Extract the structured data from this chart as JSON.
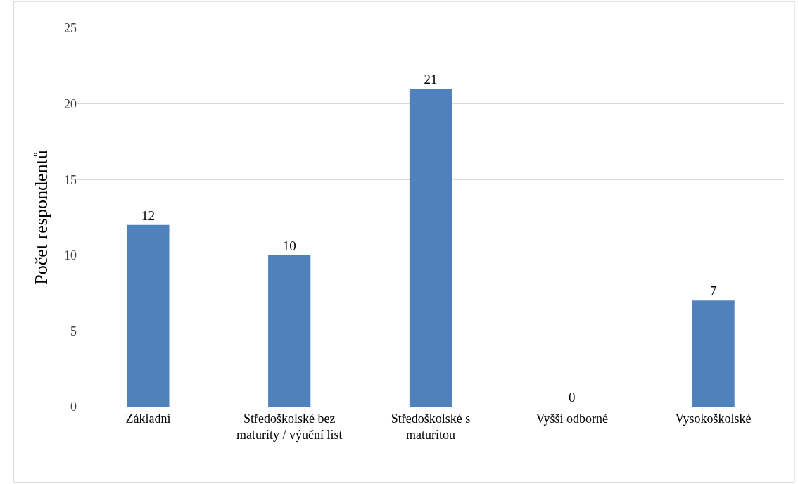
{
  "chart_data": {
    "type": "bar",
    "ylabel": "Počet respondentů",
    "categories": [
      "Základní",
      "Středoškolské bez maturity / výuční list",
      "Středoškolské s maturitou",
      "Vyšší odborné",
      "Vysokoškolské"
    ],
    "values": [
      12,
      10,
      21,
      0,
      7
    ],
    "color": "#4f81bd",
    "ylim": [
      0,
      25
    ],
    "yticks": [
      0,
      5,
      10,
      15,
      20,
      25
    ],
    "grid": "y",
    "data_labels": true,
    "legend": false
  }
}
